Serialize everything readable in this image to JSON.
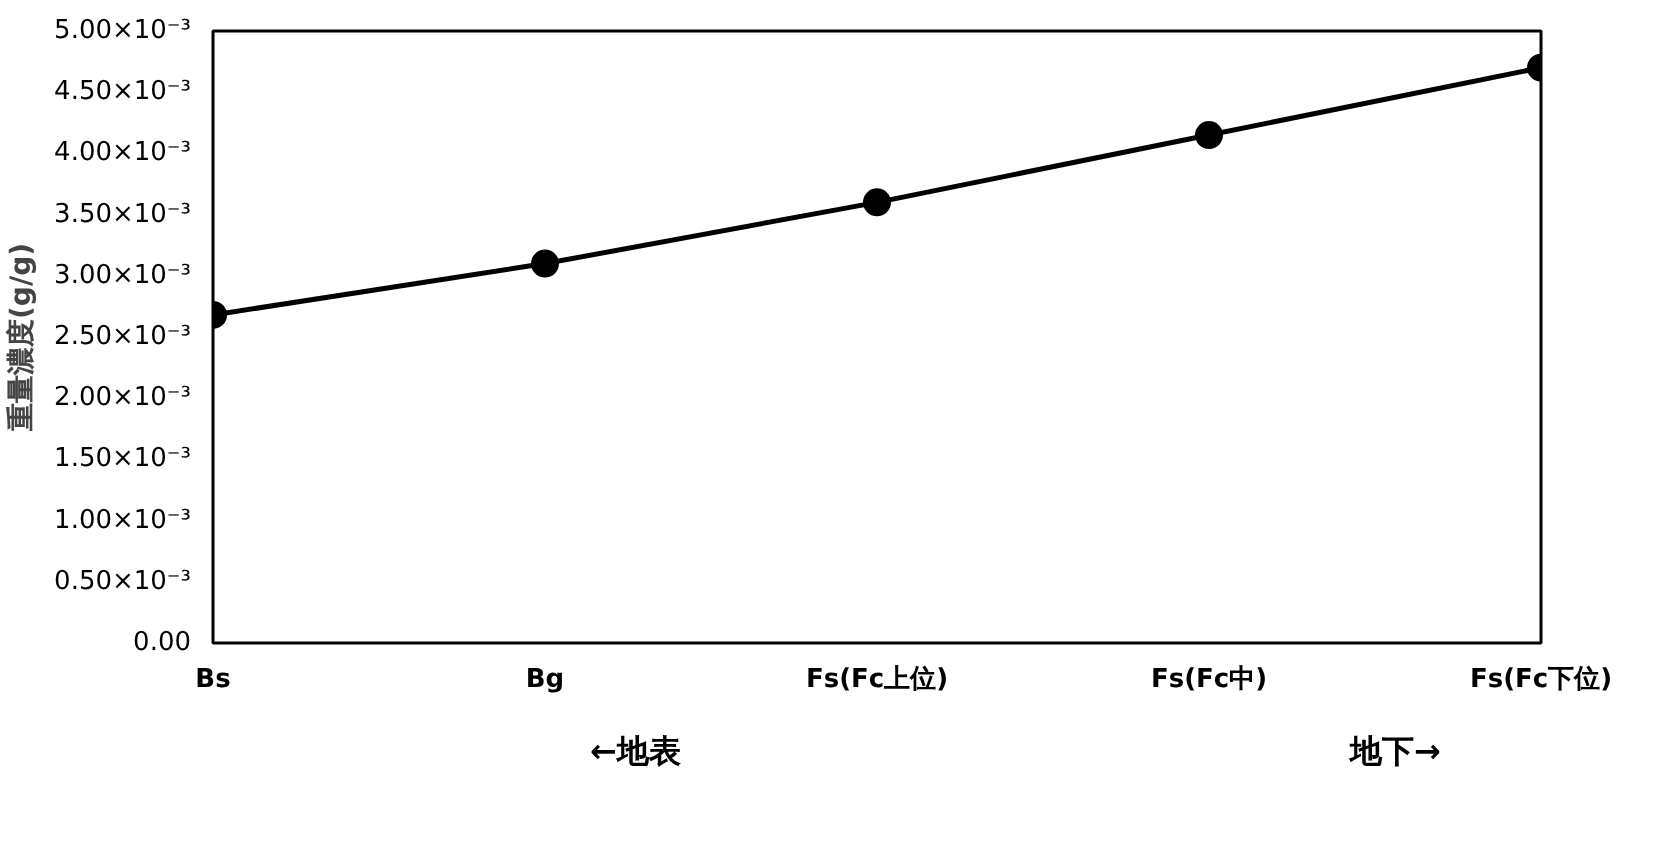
{
  "chart_data": {
    "type": "line",
    "ylabel": "重量濃度(g/g)",
    "categories": [
      "Bs",
      "Bg",
      "Fs(Fc上位)",
      "Fs(Fc中)",
      "Fs(Fc下位)"
    ],
    "series": [
      {
        "color": "#000000",
        "values": [
          0.00268,
          0.0031,
          0.0036,
          0.00415,
          0.0047
        ]
      }
    ],
    "ylim": [
      0,
      0.005
    ],
    "yticks": [
      {
        "value": 0,
        "label": "0.00"
      },
      {
        "value": 0.0005,
        "label": "0.50×10⁻³"
      },
      {
        "value": 0.001,
        "label": "1.00×10⁻³"
      },
      {
        "value": 0.0015,
        "label": "1.50×10⁻³"
      },
      {
        "value": 0.002,
        "label": "2.00×10⁻³"
      },
      {
        "value": 0.0025,
        "label": "2.50×10⁻³"
      },
      {
        "value": 0.003,
        "label": "3.00×10⁻³"
      },
      {
        "value": 0.0035,
        "label": "3.50×10⁻³"
      },
      {
        "value": 0.004,
        "label": "4.00×10⁻³"
      },
      {
        "value": 0.0045,
        "label": "4.50×10⁻³"
      },
      {
        "value": 0.005,
        "label": "5.00×10⁻³"
      }
    ],
    "marker": "circle",
    "line_style": "solid",
    "grid": false,
    "annotations": [
      "←地表",
      "地下→"
    ]
  }
}
